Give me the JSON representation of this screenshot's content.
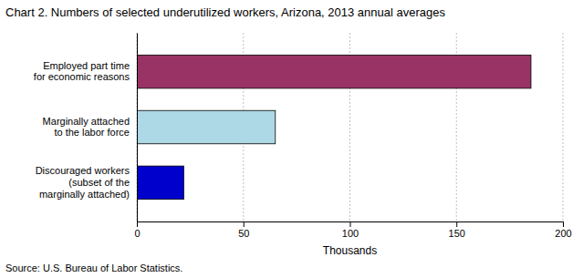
{
  "chart_data": {
    "type": "bar",
    "orientation": "horizontal",
    "title": "Chart 2.  Numbers of selected underutilized workers, Arizona, 2013  annual averages",
    "categories": [
      "Discouraged workers\n(subset of the\nmarginally attached)",
      "Marginally attached\nto the labor force",
      "Employed part time\nfor economic reasons"
    ],
    "values": [
      22,
      65,
      185
    ],
    "colors": [
      "#0000cc",
      "#add8e6",
      "#993366"
    ],
    "xlabel": "Thousands",
    "xlim": [
      0,
      200
    ],
    "xticks": [
      0,
      50,
      100,
      150,
      200
    ],
    "grid": true,
    "source": "Source: U.S. Bureau of Labor Statistics."
  }
}
